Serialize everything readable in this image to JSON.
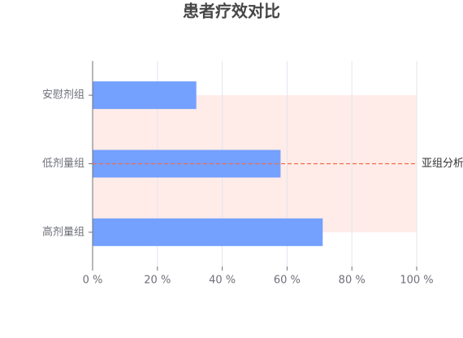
{
  "chart_data": {
    "type": "hbar",
    "title": "患者疗效对比",
    "categories": [
      "安慰剂组",
      "低剂量组",
      "高剂量组"
    ],
    "values": [
      32,
      58,
      71
    ],
    "color": "#74a0fe",
    "xlim": [
      0,
      100
    ],
    "xticks": [
      {
        "value": 0,
        "label": "0 %"
      },
      {
        "value": 20,
        "label": "20 %"
      },
      {
        "value": 40,
        "label": "40 %"
      },
      {
        "value": 60,
        "label": "60 %"
      },
      {
        "value": 80,
        "label": "80 %"
      },
      {
        "value": 100,
        "label": "100 %"
      }
    ],
    "grid": true,
    "mark_area": {
      "color": "#ffece8"
    },
    "mark_line": {
      "label": "亚组分析",
      "color": "#ee6c4d"
    }
  }
}
